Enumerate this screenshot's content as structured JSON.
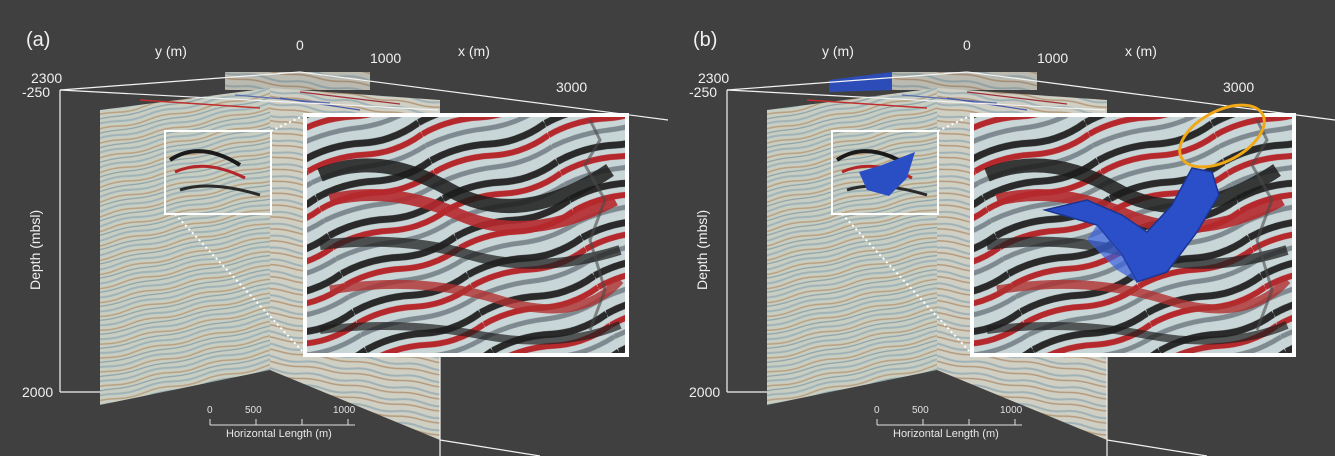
{
  "panels": [
    {
      "id": "a",
      "label": "(a)",
      "y_axis_label": "y (m)",
      "x_axis_label": "x (m)",
      "depth_label": "Depth (mbsl)",
      "ticks": {
        "y_far": "2300",
        "origin": "0",
        "x_1000": "1000",
        "x_3000": "3000",
        "depth_top": "-250",
        "depth_bottom": "2000"
      },
      "scale_bar": {
        "title": "Horizontal Length (m)",
        "ticks": [
          "0",
          "500",
          "1000"
        ]
      },
      "annotations": {
        "geobody": false,
        "highlight_ellipse": false
      }
    },
    {
      "id": "b",
      "label": "(b)",
      "y_axis_label": "y (m)",
      "x_axis_label": "x (m)",
      "depth_label": "Depth (mbsl)",
      "ticks": {
        "y_far": "2300",
        "origin": "0",
        "x_1000": "1000",
        "x_3000": "3000",
        "depth_top": "-250",
        "depth_bottom": "2000"
      },
      "scale_bar": {
        "title": "Horizontal Length (m)",
        "ticks": [
          "0",
          "500",
          "1000"
        ]
      },
      "annotations": {
        "geobody": true,
        "geobody_color": "#2a4fc4",
        "highlight_ellipse": true,
        "ellipse_color": "#f0a818"
      }
    }
  ],
  "colors": {
    "background": "#404040",
    "seismic_red": "#b3262a",
    "seismic_black": "#1a1a1a",
    "seismic_light": "#c9d4d4",
    "inset_border": "#ffffff"
  }
}
